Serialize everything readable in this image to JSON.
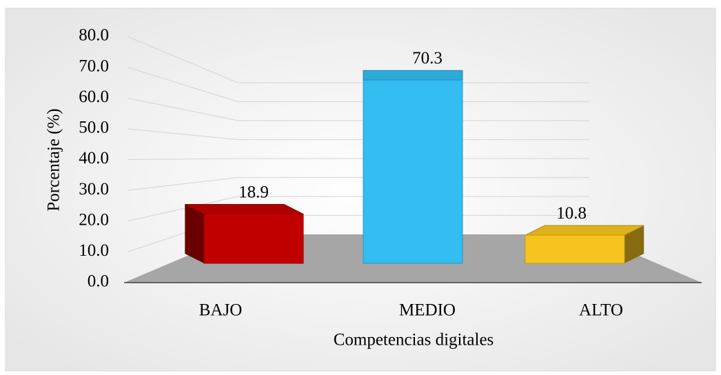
{
  "chart_data": {
    "type": "bar3d",
    "categories": [
      "BAJO",
      "MEDIO",
      "ALTO"
    ],
    "values": [
      18.9,
      70.3,
      10.8
    ],
    "colors": [
      "#c00000",
      "#33bdf0",
      "#f7c31e"
    ],
    "ylim": [
      0,
      80
    ],
    "yticks": [
      {
        "value": 0,
        "label": "0.0"
      },
      {
        "value": 10,
        "label": "10.0"
      },
      {
        "value": 20,
        "label": "20.0"
      },
      {
        "value": 30,
        "label": "30.0"
      },
      {
        "value": 40,
        "label": "40.0"
      },
      {
        "value": 50,
        "label": "50.0"
      },
      {
        "value": 60,
        "label": "60.0"
      },
      {
        "value": 70,
        "label": "70.0"
      },
      {
        "value": 80,
        "label": "80.0"
      }
    ],
    "ylabel": "Porcentaje (%)",
    "xlabel": "Competencias digitales",
    "grid": true
  }
}
